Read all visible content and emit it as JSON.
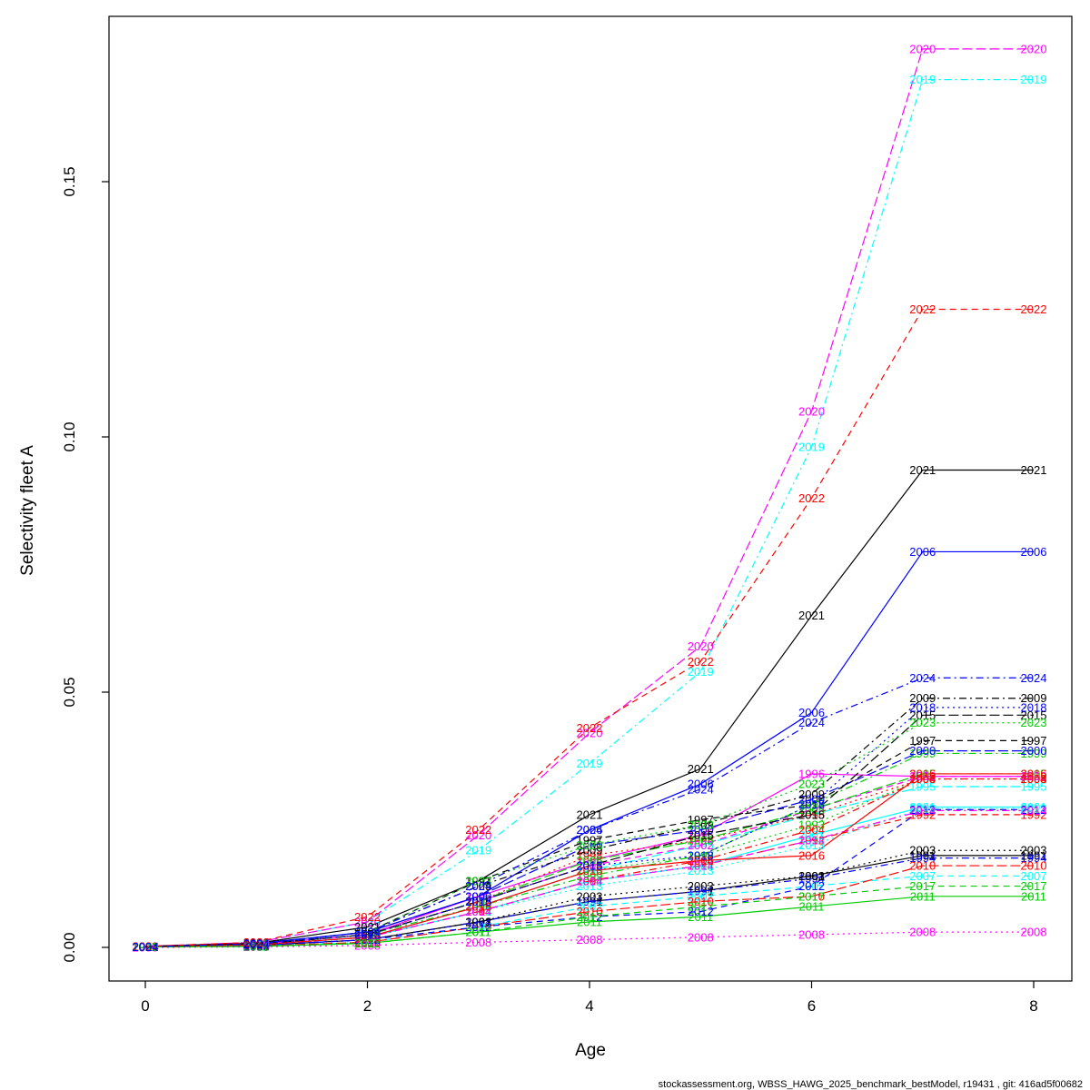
{
  "footer": {
    "text": "stockassessment.org, WBSS_HAWG_2025_benchmark_bestModel, r19431 , git: 416ad5f00682"
  },
  "chart_data": {
    "type": "line",
    "title": "",
    "xlabel": "Age",
    "ylabel": "Selectivity fleet A",
    "x": [
      0,
      1,
      2,
      3,
      4,
      5,
      6,
      7,
      8
    ],
    "xlim": [
      0,
      8
    ],
    "ylim": [
      0,
      0.18
    ],
    "xticks": [
      0,
      2,
      4,
      6,
      8
    ],
    "xtick_labels": [
      "0",
      "2",
      "4",
      "6",
      "8"
    ],
    "yticks": [
      0,
      0.05,
      0.1,
      0.15
    ],
    "ytick_labels": [
      "0.00",
      "0.05",
      "0.10",
      "0.15"
    ],
    "grid": false,
    "legend": "labels-on-lines",
    "palette": [
      "#000000",
      "#FF0000",
      "#00CD00",
      "#0000FF",
      "#00FFFF",
      "#FF00FF"
    ],
    "series": [
      {
        "name": "1991",
        "color": "#000000",
        "dash": "solid",
        "values": [
          0.0001,
          0.0004,
          0.0015,
          0.005,
          0.009,
          0.011,
          0.014,
          0.018,
          0.018
        ]
      },
      {
        "name": "1992",
        "color": "#FF0000",
        "dash": "dashed",
        "values": [
          0.0001,
          0.0005,
          0.002,
          0.007,
          0.013,
          0.016,
          0.021,
          0.026,
          0.026
        ]
      },
      {
        "name": "1993",
        "color": "#00CD00",
        "dash": "dotted",
        "values": [
          0.0001,
          0.0005,
          0.002,
          0.008,
          0.015,
          0.018,
          0.024,
          0.033,
          0.033
        ]
      },
      {
        "name": "1994",
        "color": "#0000FF",
        "dash": "dotdash",
        "values": [
          0.0001,
          0.0004,
          0.0015,
          0.005,
          0.009,
          0.011,
          0.0135,
          0.0175,
          0.0175
        ]
      },
      {
        "name": "1995",
        "color": "#00FFFF",
        "dash": "longdash",
        "values": [
          0.0001,
          0.0005,
          0.002,
          0.008,
          0.015,
          0.02,
          0.026,
          0.0315,
          0.0315
        ]
      },
      {
        "name": "1996",
        "color": "#FF00FF",
        "dash": "solid",
        "values": [
          0.0001,
          0.0006,
          0.0025,
          0.01,
          0.017,
          0.022,
          0.034,
          0.0335,
          0.0335
        ]
      },
      {
        "name": "1997",
        "color": "#000000",
        "dash": "dashed",
        "values": [
          0.0001,
          0.0006,
          0.003,
          0.013,
          0.021,
          0.025,
          0.028,
          0.0405,
          0.0405
        ]
      },
      {
        "name": "1998",
        "color": "#FF0000",
        "dash": "dotted",
        "values": [
          0.0001,
          0.0006,
          0.0025,
          0.009,
          0.018,
          0.021,
          0.026,
          0.033,
          0.033
        ]
      },
      {
        "name": "1999",
        "color": "#00CD00",
        "dash": "dotdash",
        "values": [
          0.0001,
          0.0006,
          0.0025,
          0.008,
          0.014,
          0.018,
          0.028,
          0.038,
          0.038
        ]
      },
      {
        "name": "2000",
        "color": "#0000FF",
        "dash": "longdash",
        "values": [
          0.0001,
          0.0006,
          0.003,
          0.01,
          0.02,
          0.023,
          0.029,
          0.0385,
          0.0385
        ]
      },
      {
        "name": "2001",
        "color": "#00FFFF",
        "dash": "solid",
        "values": [
          0.0001,
          0.0005,
          0.002,
          0.007,
          0.013,
          0.016,
          0.022,
          0.0275,
          0.0275
        ]
      },
      {
        "name": "2002",
        "color": "#FF00FF",
        "dash": "dashed",
        "values": [
          0.0001,
          0.0006,
          0.0025,
          0.009,
          0.016,
          0.02,
          0.027,
          0.0335,
          0.0335
        ]
      },
      {
        "name": "2003",
        "color": "#000000",
        "dash": "dotted",
        "values": [
          0.0001,
          0.0004,
          0.0015,
          0.005,
          0.01,
          0.012,
          0.014,
          0.019,
          0.019
        ]
      },
      {
        "name": "2004",
        "color": "#FF0000",
        "dash": "dotdash",
        "values": [
          0.0001,
          0.0005,
          0.002,
          0.007,
          0.013,
          0.017,
          0.023,
          0.033,
          0.033
        ]
      },
      {
        "name": "2005",
        "color": "#00CD00",
        "dash": "longdash",
        "values": [
          0.0001,
          0.0006,
          0.0025,
          0.009,
          0.017,
          0.021,
          0.027,
          0.034,
          0.034
        ]
      },
      {
        "name": "2006",
        "color": "#0000FF",
        "dash": "solid",
        "values": [
          0.0002,
          0.0008,
          0.003,
          0.01,
          0.023,
          0.032,
          0.046,
          0.0775,
          0.0775
        ]
      },
      {
        "name": "2007",
        "color": "#00FFFF",
        "dash": "dashed",
        "values": [
          0.0001,
          0.0003,
          0.001,
          0.004,
          0.008,
          0.01,
          0.012,
          0.014,
          0.014
        ]
      },
      {
        "name": "2008",
        "color": "#FF00FF",
        "dash": "dotted",
        "values": [
          0,
          0.0001,
          0.0004,
          0.001,
          0.0015,
          0.002,
          0.0025,
          0.003,
          0.003
        ]
      },
      {
        "name": "2009",
        "color": "#000000",
        "dash": "dotdash",
        "values": [
          0.0001,
          0.0007,
          0.003,
          0.012,
          0.019,
          0.024,
          0.03,
          0.0488,
          0.0488
        ]
      },
      {
        "name": "2010",
        "color": "#FF0000",
        "dash": "longdash",
        "values": [
          0.0001,
          0.0003,
          0.001,
          0.004,
          0.007,
          0.009,
          0.01,
          0.016,
          0.016
        ]
      },
      {
        "name": "2011",
        "color": "#00CD00",
        "dash": "solid",
        "values": [
          0.0001,
          0.0002,
          0.0008,
          0.003,
          0.005,
          0.006,
          0.008,
          0.01,
          0.01
        ]
      },
      {
        "name": "2012",
        "color": "#0000FF",
        "dash": "dashed",
        "values": [
          0.0001,
          0.0004,
          0.0015,
          0.004,
          0.006,
          0.007,
          0.012,
          0.027,
          0.027
        ]
      },
      {
        "name": "2013",
        "color": "#00FFFF",
        "dash": "dotted",
        "values": [
          0.0001,
          0.0005,
          0.002,
          0.007,
          0.012,
          0.015,
          0.02,
          0.0272,
          0.0272
        ]
      },
      {
        "name": "2014",
        "color": "#FF00FF",
        "dash": "dotdash",
        "values": [
          0.0001,
          0.0005,
          0.002,
          0.007,
          0.013,
          0.016,
          0.021,
          0.0268,
          0.0268
        ]
      },
      {
        "name": "2015",
        "color": "#000000",
        "dash": "longdash",
        "values": [
          0.0001,
          0.0006,
          0.0025,
          0.009,
          0.016,
          0.022,
          0.026,
          0.0455,
          0.0455
        ]
      },
      {
        "name": "2016",
        "color": "#FF0000",
        "dash": "solid",
        "values": [
          0.0001,
          0.0005,
          0.002,
          0.008,
          0.015,
          0.017,
          0.018,
          0.034,
          0.034
        ]
      },
      {
        "name": "2017",
        "color": "#00CD00",
        "dash": "dashed",
        "values": [
          0.0001,
          0.0002,
          0.0008,
          0.003,
          0.006,
          0.008,
          0.01,
          0.012,
          0.012
        ]
      },
      {
        "name": "2018",
        "color": "#0000FF",
        "dash": "dotted",
        "values": [
          0.0001,
          0.0006,
          0.0025,
          0.009,
          0.016,
          0.018,
          0.028,
          0.047,
          0.047
        ]
      },
      {
        "name": "2019",
        "color": "#00FFFF",
        "dash": "dotdash",
        "values": [
          0.0002,
          0.001,
          0.005,
          0.019,
          0.036,
          0.054,
          0.098,
          0.17,
          0.17
        ]
      },
      {
        "name": "2020",
        "color": "#FF00FF",
        "dash": "longdash",
        "values": [
          0.0002,
          0.001,
          0.005,
          0.022,
          0.042,
          0.059,
          0.105,
          0.176,
          0.176
        ]
      },
      {
        "name": "2021",
        "color": "#000000",
        "dash": "solid",
        "values": [
          0.0002,
          0.0008,
          0.004,
          0.013,
          0.026,
          0.035,
          0.065,
          0.0935,
          0.0935
        ]
      },
      {
        "name": "2022",
        "color": "#FF0000",
        "dash": "dashed",
        "values": [
          0.0002,
          0.001,
          0.006,
          0.023,
          0.043,
          0.056,
          0.088,
          0.125,
          0.125
        ]
      },
      {
        "name": "2023",
        "color": "#00CD00",
        "dash": "dotted",
        "values": [
          0.0001,
          0.0007,
          0.003,
          0.013,
          0.02,
          0.024,
          0.032,
          0.044,
          0.044
        ]
      },
      {
        "name": "2024",
        "color": "#0000FF",
        "dash": "dotdash",
        "values": [
          0.0001,
          0.0007,
          0.003,
          0.012,
          0.023,
          0.031,
          0.044,
          0.0528,
          0.0528
        ]
      }
    ]
  }
}
